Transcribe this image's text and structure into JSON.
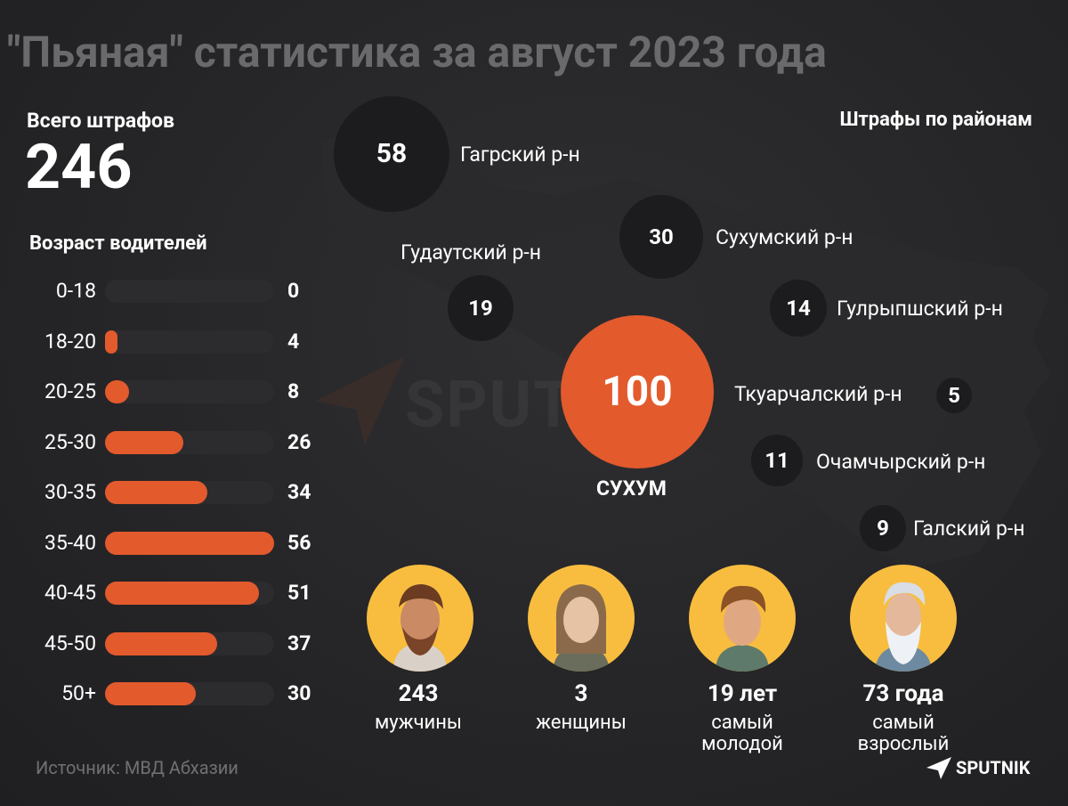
{
  "title": "\"Пьяная\" статистика за август 2023 года",
  "total": {
    "label": "Всего штрафов",
    "value": "246"
  },
  "colors": {
    "accent": "#e35a2d",
    "bubble": "#1c1c1e",
    "avatar_bg": "#f8bd3f",
    "track": "#2c2c2f"
  },
  "chart_data": [
    {
      "type": "bar",
      "title": "Возраст водителей",
      "orientation": "horizontal",
      "categories": [
        "0-18",
        "18-20",
        "20-25",
        "25-30",
        "30-35",
        "35-40",
        "40-45",
        "45-50",
        "50+"
      ],
      "values": [
        0,
        4,
        8,
        26,
        34,
        56,
        51,
        37,
        30
      ],
      "value_labels": [
        "0",
        "4",
        "8",
        "26",
        "34",
        "56",
        "51",
        "37",
        "30"
      ]
    },
    {
      "type": "bubble",
      "title": "Штрафы по районам",
      "items": [
        {
          "name": "Гагрский р-н",
          "value": 58,
          "label": "58"
        },
        {
          "name": "Сухумский р-н",
          "value": 30,
          "label": "30"
        },
        {
          "name": "Гудаутский р-н",
          "value": 19,
          "label": "19"
        },
        {
          "name": "Гулрыпшский р-н",
          "value": 14,
          "label": "14"
        },
        {
          "name": "СУХУМ",
          "value": 100,
          "label": "100"
        },
        {
          "name": "Ткуарчалский р-н",
          "value": 5,
          "label": "5"
        },
        {
          "name": "Очамчырский р-н",
          "value": 11,
          "label": "11"
        },
        {
          "name": "Галский р-н",
          "value": 9,
          "label": "9"
        }
      ]
    }
  ],
  "stats": [
    {
      "value": "243",
      "label": "мужчины",
      "icon": "man-avatar-icon"
    },
    {
      "value": "3",
      "label": "женщины",
      "icon": "woman-avatar-icon"
    },
    {
      "value": "19 лет",
      "label": "самый молодой",
      "icon": "young-man-avatar-icon"
    },
    {
      "value": "73 года",
      "label": "самый взрослый",
      "icon": "old-man-avatar-icon"
    }
  ],
  "source": "Источник: МВД Абхазии",
  "brand": "SPUTNIK",
  "watermark": "SPUTNIK"
}
